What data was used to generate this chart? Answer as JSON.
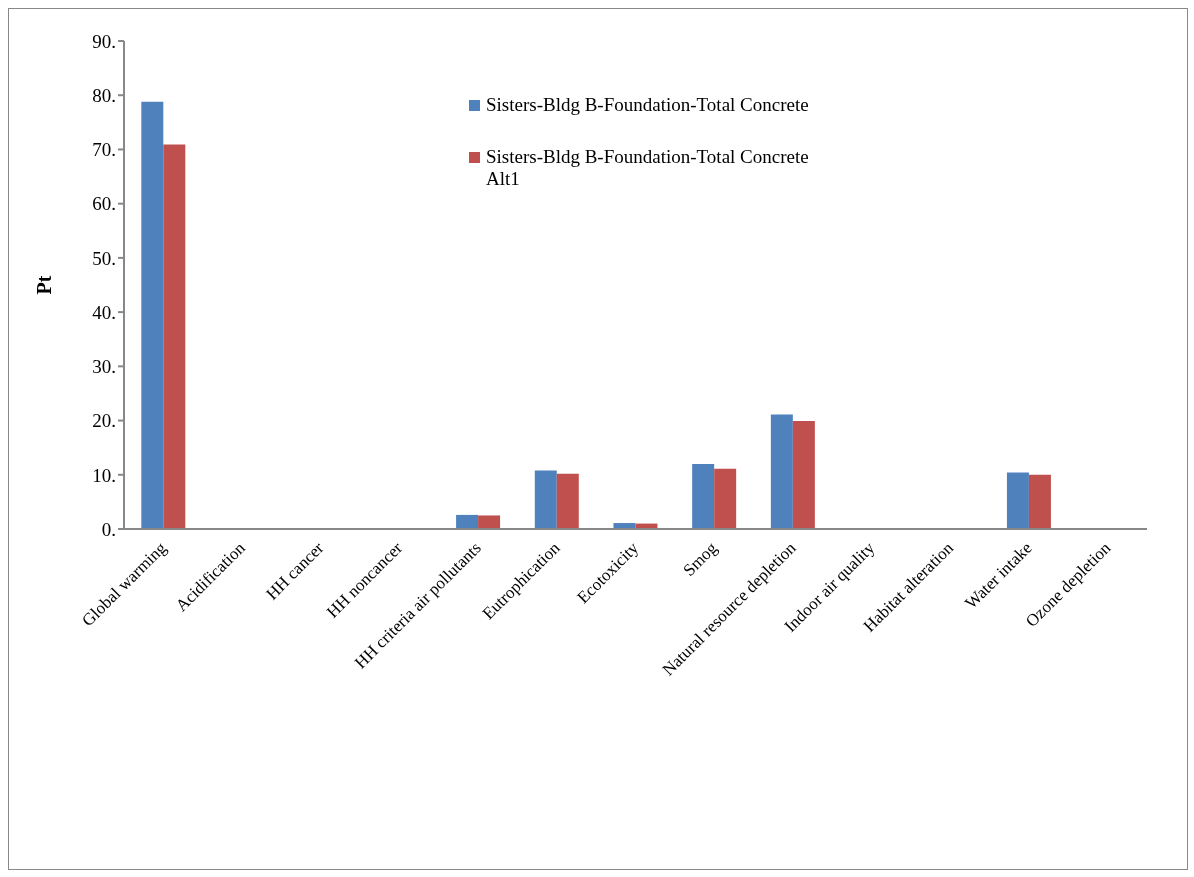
{
  "chart_data": {
    "type": "bar",
    "ylabel": "Pt",
    "categories": [
      "Global warming",
      "Acidification",
      "HH cancer",
      "HH noncancer",
      "HH criteria air pollutants",
      "Eutrophication",
      "Ecotoxicity",
      "Smog",
      "Natural resource depletion",
      "Indoor air quality",
      "Habitat alteration",
      "Water intake",
      "Ozone depletion"
    ],
    "series": [
      {
        "name": "Sisters-Bldg B-Foundation-Total Concrete",
        "color": "#4f81bd",
        "values": [
          78.8,
          0,
          0,
          0,
          2.6,
          10.8,
          1.1,
          12.0,
          21.1,
          0,
          0,
          10.4,
          0
        ]
      },
      {
        "name": "Sisters-Bldg B-Foundation-Total Concrete Alt1",
        "color": "#c0504d",
        "values": [
          70.9,
          0,
          0,
          0,
          2.5,
          10.2,
          1.0,
          11.1,
          19.9,
          0,
          0,
          10.0,
          0
        ]
      }
    ],
    "ylim": [
      0,
      90
    ],
    "yticks": [
      {
        "value": 0,
        "label": "0."
      },
      {
        "value": 10,
        "label": "10."
      },
      {
        "value": 20,
        "label": "20."
      },
      {
        "value": 30,
        "label": "30."
      },
      {
        "value": 40,
        "label": "40."
      },
      {
        "value": 50,
        "label": "50."
      },
      {
        "value": 60,
        "label": "60."
      },
      {
        "value": 70,
        "label": "70."
      },
      {
        "value": 80,
        "label": "80."
      },
      {
        "value": 90,
        "label": "90."
      }
    ],
    "grid": false,
    "legend": "top"
  }
}
